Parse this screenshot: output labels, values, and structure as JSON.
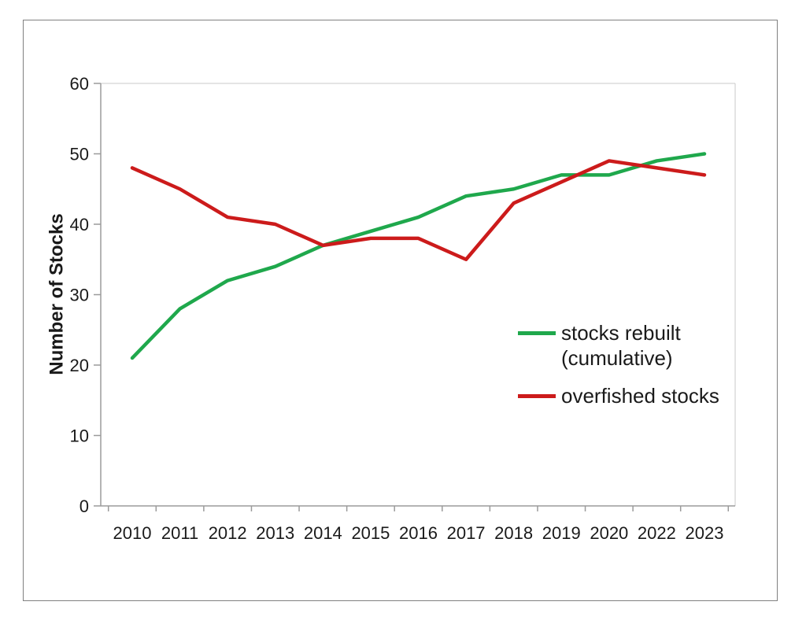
{
  "figure": {
    "y_axis_title": "Number of Stocks",
    "legend": [
      {
        "label": "stocks rebuilt\n(cumulative)",
        "series": "rebuilt"
      },
      {
        "label": "overfished stocks",
        "series": "overfished"
      }
    ]
  },
  "colors": {
    "rebuilt": "#1FA84C",
    "overfished": "#CC1B1B",
    "axis": "#9B9B9B",
    "plot_border": "#C9C9C9",
    "frame_border": "#808080",
    "text": "#1A1A1A"
  },
  "chart_data": {
    "type": "line",
    "title": "",
    "xlabel": "",
    "ylabel": "Number of Stocks",
    "categories": [
      "2010",
      "2011",
      "2012",
      "2013",
      "2014",
      "2015",
      "2016",
      "2017",
      "2018",
      "2019",
      "2020",
      "2022",
      "2023"
    ],
    "series": [
      {
        "name": "stocks rebuilt (cumulative)",
        "color_key": "rebuilt",
        "values": [
          21,
          28,
          32,
          34,
          37,
          39,
          41,
          44,
          45,
          47,
          47,
          49,
          50
        ]
      },
      {
        "name": "overfished stocks",
        "color_key": "overfished",
        "values": [
          48,
          45,
          41,
          40,
          37,
          38,
          38,
          35,
          43,
          46,
          49,
          48,
          47
        ]
      }
    ],
    "ylim": [
      0,
      60
    ],
    "yticks": [
      0,
      10,
      20,
      30,
      40,
      50,
      60
    ],
    "grid": false,
    "legend_position": "inside-right"
  }
}
